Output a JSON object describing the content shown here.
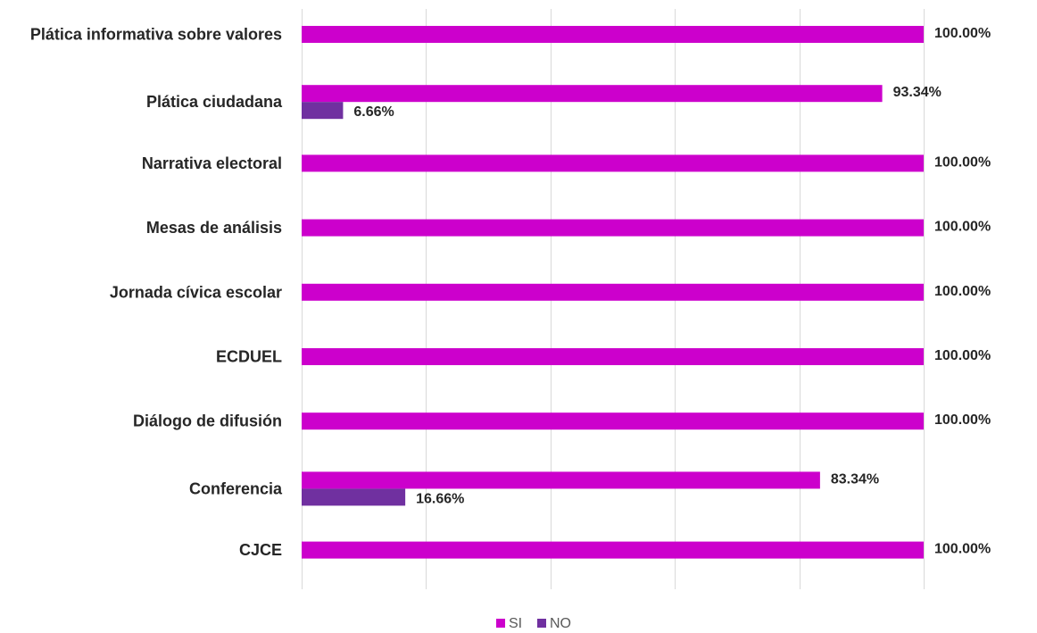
{
  "chart_data": {
    "type": "bar",
    "orientation": "horizontal",
    "title": "",
    "xlabel": "",
    "ylabel": "",
    "xlim": [
      0,
      100
    ],
    "grid": true,
    "legend_position": "bottom",
    "categories": [
      "Plática informativa sobre valores",
      "Plática ciudadana",
      "Narrativa electoral",
      "Mesas de análisis",
      "Jornada cívica escolar",
      "ECDUEL",
      "Diálogo de difusión",
      "Conferencia",
      "CJCE"
    ],
    "series": [
      {
        "name": "SI",
        "color": "#cc00cc",
        "values": [
          100,
          93.34,
          100,
          100,
          100,
          100,
          100,
          83.34,
          100
        ],
        "labels": [
          "100.00%",
          "93.34%",
          "100.00%",
          "100.00%",
          "100.00%",
          "100.00%",
          "100.00%",
          "83.34%",
          "100.00%"
        ]
      },
      {
        "name": "NO",
        "color": "#7030a0",
        "values": [
          0,
          6.66,
          0,
          0,
          0,
          0,
          0,
          16.66,
          0
        ],
        "labels": [
          "",
          "6.66%",
          "",
          "",
          "",
          "",
          "",
          "16.66%",
          ""
        ]
      }
    ]
  }
}
